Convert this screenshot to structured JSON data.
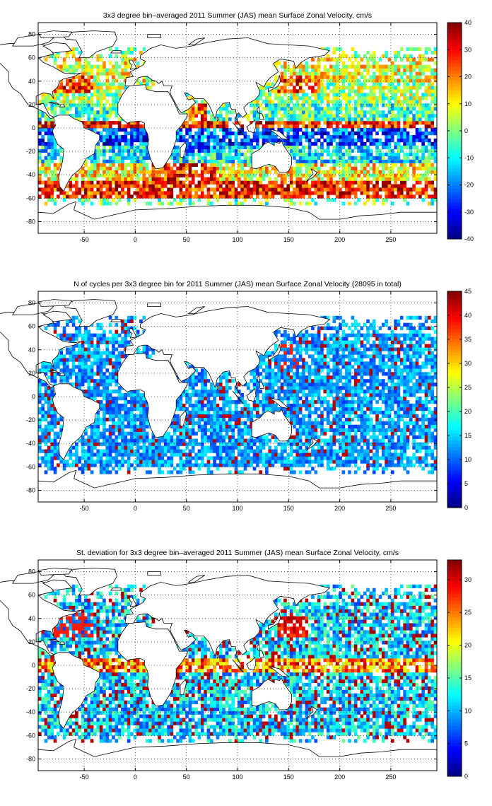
{
  "chart_data": [
    {
      "type": "heatmap",
      "title": "3x3 degree bin–averaged 2011 Summer (JAS) mean Surface Zonal Velocity, cm/s",
      "xlim": [
        -95,
        295
      ],
      "ylim": [
        -90,
        90
      ],
      "x_ticks": [
        -50,
        0,
        50,
        100,
        150,
        200,
        250
      ],
      "y_ticks": [
        80,
        60,
        40,
        20,
        0,
        -20,
        -40,
        -60,
        -80
      ],
      "colorbar": {
        "min": -40,
        "max": 40,
        "ticks": [
          40,
          30,
          20,
          10,
          0,
          -10,
          -20,
          -30,
          -40
        ]
      },
      "grid": "dotted",
      "field": "zonal_velocity",
      "bands_note": "approximate latitude-band means",
      "bands": [
        {
          "lat": [
            60,
            70
          ],
          "value": 3
        },
        {
          "lat": [
            40,
            60
          ],
          "value": 8
        },
        {
          "lat": [
            20,
            40
          ],
          "value": 2
        },
        {
          "lat": [
            5,
            20
          ],
          "value": -5
        },
        {
          "lat": [
            0,
            5
          ],
          "value": 30
        },
        {
          "lat": [
            -15,
            0
          ],
          "value": -25
        },
        {
          "lat": [
            -30,
            -15
          ],
          "value": -10
        },
        {
          "lat": [
            -45,
            -30
          ],
          "value": 10
        },
        {
          "lat": [
            -60,
            -45
          ],
          "value": 28
        }
      ]
    },
    {
      "type": "heatmap",
      "title": "N of cycles per 3x3 degree bin for 2011 Summer (JAS) mean Surface Zonal Velocity (28095 in total)",
      "xlim": [
        -95,
        295
      ],
      "ylim": [
        -90,
        90
      ],
      "x_ticks": [
        -50,
        0,
        50,
        100,
        150,
        200,
        250
      ],
      "y_ticks": [
        80,
        60,
        40,
        20,
        0,
        -20,
        -40,
        -60,
        -80
      ],
      "colorbar": {
        "min": 0,
        "max": 45,
        "ticks": [
          45,
          40,
          35,
          30,
          25,
          20,
          15,
          10,
          5,
          0
        ]
      },
      "grid": "dotted",
      "field": "cycle_count",
      "total": 28095
    },
    {
      "type": "heatmap",
      "title": "St. deviation for 3x3 degree bin–averaged 2011 Summer (JAS) mean Surface Zonal Velocity, cm/s",
      "xlim": [
        -95,
        295
      ],
      "ylim": [
        -90,
        90
      ],
      "x_ticks": [
        -50,
        0,
        50,
        100,
        150,
        200,
        250
      ],
      "y_ticks": [
        80,
        60,
        40,
        20,
        0,
        -20,
        -40,
        -60,
        -80
      ],
      "colorbar": {
        "min": 0,
        "max": 33,
        "ticks": [
          30,
          25,
          20,
          15,
          10,
          5,
          0
        ]
      },
      "grid": "dotted",
      "field": "std_deviation"
    }
  ]
}
